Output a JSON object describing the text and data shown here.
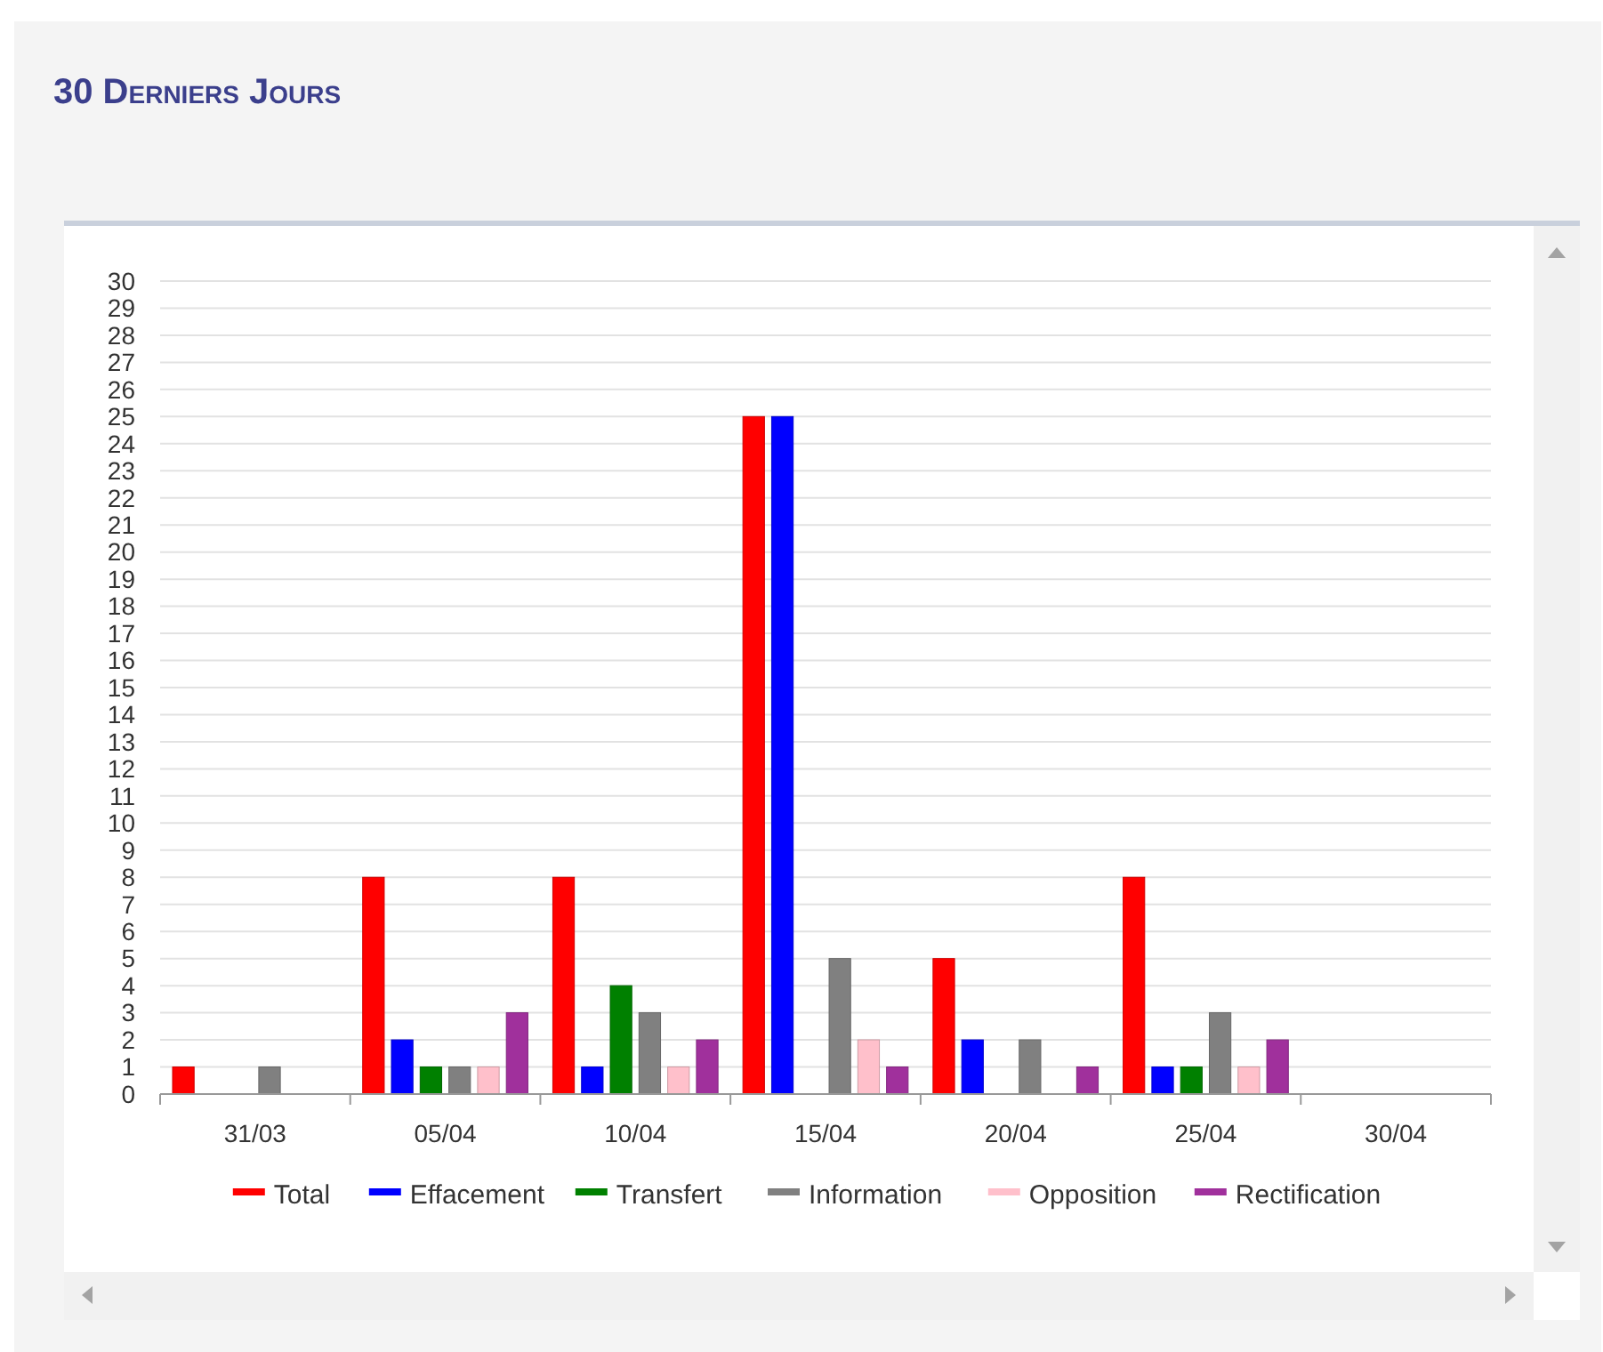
{
  "chart_data": {
    "type": "bar",
    "title": "30 Derniers Jours",
    "categories": [
      "31/03",
      "05/04",
      "10/04",
      "15/04",
      "20/04",
      "25/04",
      "30/04"
    ],
    "series": [
      {
        "name": "Total",
        "color": "#ff0000",
        "values": [
          1,
          8,
          8,
          25,
          5,
          8,
          0
        ]
      },
      {
        "name": "Effacement",
        "color": "#0000ff",
        "values": [
          0,
          2,
          1,
          25,
          2,
          1,
          0
        ]
      },
      {
        "name": "Transfert",
        "color": "#008000",
        "values": [
          0,
          1,
          4,
          0,
          0,
          1,
          0
        ]
      },
      {
        "name": "Information",
        "color": "#808080",
        "values": [
          1,
          1,
          3,
          5,
          2,
          3,
          0
        ]
      },
      {
        "name": "Opposition",
        "color": "#ffc0cb",
        "values": [
          0,
          1,
          1,
          2,
          0,
          1,
          0
        ]
      },
      {
        "name": "Rectification",
        "color": "#a0309c",
        "values": [
          0,
          3,
          2,
          1,
          1,
          2,
          0
        ]
      }
    ],
    "ylim": [
      0,
      30
    ],
    "yticks": [
      0,
      1,
      2,
      3,
      4,
      5,
      6,
      7,
      8,
      9,
      10,
      11,
      12,
      13,
      14,
      15,
      16,
      17,
      18,
      19,
      20,
      21,
      22,
      23,
      24,
      25,
      26,
      27,
      28,
      29,
      30
    ],
    "grid": "y",
    "legend": "bottom"
  }
}
